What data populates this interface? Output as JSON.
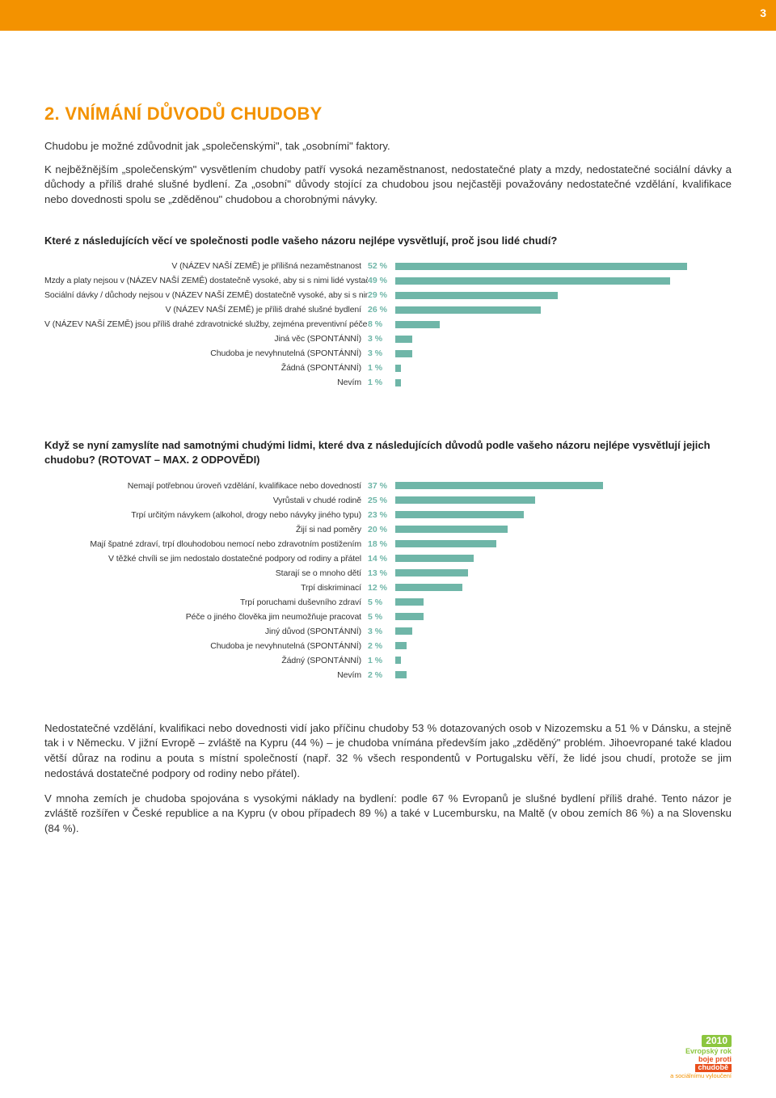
{
  "page_number": "3",
  "accent_color": "#f39200",
  "bar_color": "#6fb6a8",
  "pct_color": "#6fb6a8",
  "section_title": "2. VNÍMÁNÍ DŮVODŮ CHUDOBY",
  "intro_p1": "Chudobu je možné zdůvodnit jak „společenskými\", tak „osobními\" faktory.",
  "intro_p2": "K nejběžnějším „společenským\" vysvětlením chudoby patří vysoká nezaměstnanost, nedostatečné platy a mzdy, nedostatečné sociální dávky a důchody a příliš drahé slušné bydlení. Za „osobní\" důvody stojící za chudobou jsou nejčastěji považovány nedostatečné vzdělání, kvalifikace nebo dovednosti spolu se „zděděnou\" chudobou a chorobnými návyky.",
  "chart1": {
    "question": "Které z následujících věcí ve společnosti podle vašeho názoru nejlépe vysvětlují, proč jsou lidé chudí?",
    "max": 60,
    "items": [
      {
        "label": "V (NÁZEV NAŠÍ ZEMĚ) je přílišná nezaměstnanost",
        "value": 52
      },
      {
        "label": "Mzdy a platy nejsou v (NÁZEV NAŠÍ ZEMĚ) dostatečně vysoké, aby si s nimi lidé vystačili",
        "value": 49
      },
      {
        "label": "Sociální dávky / důchody nejsou v (NÁZEV NAŠÍ ZEMĚ) dostatečně vysoké, aby si s nimi lidé vystačili",
        "value": 29
      },
      {
        "label": "V (NÁZEV NAŠÍ ZEMĚ) je příliš drahé slušné bydlení",
        "value": 26
      },
      {
        "label": "V (NÁZEV NAŠÍ ZEMĚ) jsou příliš drahé zdravotnické služby, zejména preventivní péče",
        "value": 8
      },
      {
        "label": "Jiná věc (SPONTÁNNÍ)",
        "value": 3
      },
      {
        "label": "Chudoba je nevyhnutelná (SPONTÁNNÍ)",
        "value": 3
      },
      {
        "label": "Žádná (SPONTÁNNÍ)",
        "value": 1
      },
      {
        "label": "Nevím",
        "value": 1
      }
    ]
  },
  "chart2": {
    "question": "Když se nyní zamyslíte nad samotnými chudými lidmi, které dva z následujících důvodů podle vašeho názoru nejlépe vysvětlují jejich chudobu? (ROTOVAT – MAX. 2 ODPOVĚDI)",
    "max": 60,
    "items": [
      {
        "label": "Nemají potřebnou úroveň vzdělání, kvalifikace nebo dovedností",
        "value": 37
      },
      {
        "label": "Vyrůstali v chudé rodině",
        "value": 25
      },
      {
        "label": "Trpí určitým návykem (alkohol, drogy nebo návyky jiného typu)",
        "value": 23
      },
      {
        "label": "Žijí si nad poměry",
        "value": 20
      },
      {
        "label": "Mají špatné zdraví, trpí dlouhodobou nemocí nebo zdravotním postižením",
        "value": 18
      },
      {
        "label": "V těžké chvíli se jim nedostalo dostatečné podpory od rodiny a přátel",
        "value": 14
      },
      {
        "label": "Starají se o mnoho dětí",
        "value": 13
      },
      {
        "label": "Trpí diskriminací",
        "value": 12
      },
      {
        "label": "Trpí poruchami duševního zdraví",
        "value": 5
      },
      {
        "label": "Péče o jiného člověka jim neumožňuje pracovat",
        "value": 5
      },
      {
        "label": "Jiný důvod (SPONTÁNNÍ)",
        "value": 3
      },
      {
        "label": "Chudoba je nevyhnutelná (SPONTÁNNÍ)",
        "value": 2
      },
      {
        "label": "Žádný (SPONTÁNNÍ)",
        "value": 1
      },
      {
        "label": "Nevím",
        "value": 2
      }
    ]
  },
  "closing_p1": "Nedostatečné vzdělání, kvalifikaci nebo dovednosti vidí jako příčinu chudoby 53 % dotazovaných osob v Nizozemsku a 51 % v Dánsku, a stejně tak i v Německu. V jižní Evropě – zvláště na Kypru (44 %) – je chudoba vnímána především jako „zděděný\" problém. Jihoevropané také kladou větší důraz na rodinu a pouta s místní společností (např. 32 % všech respondentů v Portugalsku věří, že lidé jsou chudí, protože se jim nedostává dostatečné podpory od rodiny nebo přátel).",
  "closing_p2": "V mnoha zemích je chudoba spojována s vysokými náklady na bydlení: podle 67 % Evropanů je slušné bydlení příliš drahé. Tento názor je zvláště rozšířen v České republice a na Kypru (v obou případech 89 %) a také v Lucembursku, na Maltě (v obou zemích 86 %) a na Slovensku (84 %).",
  "logo": {
    "year": "2010",
    "line1": "Evropský rok",
    "line2": "boje proti",
    "line3": "chudobě",
    "line4": "a sociálnímu vyloučení"
  }
}
